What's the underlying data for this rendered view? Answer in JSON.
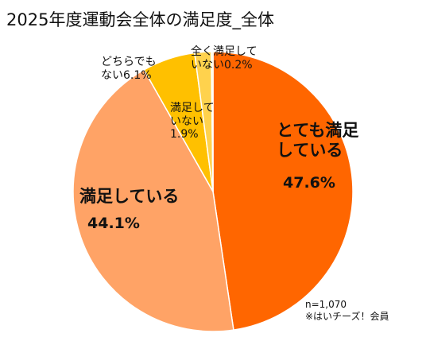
{
  "chart_data": {
    "type": "pie",
    "title": "2025年度運動会全体の満足度_全体",
    "categories": [
      "とても満足している",
      "満足している",
      "どちらでもない",
      "満足していない",
      "全く満足していない"
    ],
    "values": [
      47.6,
      44.1,
      6.1,
      1.9,
      0.2
    ],
    "value_labels": [
      "47.6%",
      "44.1%",
      "6.1%",
      "1.9%",
      "0.2%"
    ],
    "colors": [
      "#ff6600",
      "#ffa366",
      "#ffc000",
      "#ffd24d",
      "#fff2b3"
    ],
    "start_angle_deg": 0,
    "direction": "clockwise",
    "labels": {
      "very_satisfied": {
        "line1": "とても満足",
        "line2": "している",
        "pct": "47.6%"
      },
      "satisfied": {
        "line1": "満足している",
        "pct": "44.1%"
      },
      "neutral": {
        "line1": "どちらでも",
        "line2": "ない6.1%"
      },
      "unsatisfied": {
        "line1": "満足して",
        "line2": "いない",
        "pct": "1.9%"
      },
      "very_unsatisfied": {
        "line1": "全く満足して",
        "line2": "いない0.2%"
      }
    },
    "notes": {
      "sample": "n=1,070",
      "source": "※はいチーズ！会員"
    }
  }
}
